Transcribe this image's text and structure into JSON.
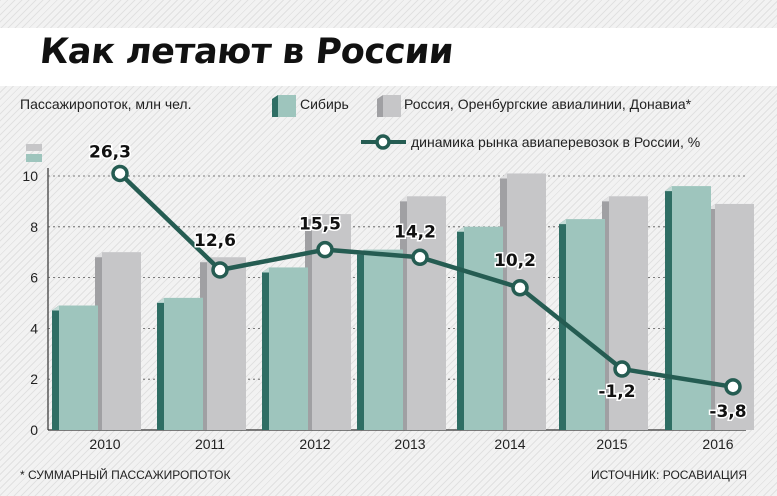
{
  "title": "Как летают в России",
  "colors": {
    "siberia_front": "#9ec5bd",
    "siberia_side": "#2f6e64",
    "siberia_top": "#c6ddd8",
    "others_front": "#c6c6c8",
    "others_side": "#a0a0a3",
    "others_top": "#e2e2e3",
    "line": "#255c52"
  },
  "footnote": "* СУММАРНЫЙ ПАССАЖИРОПОТОК",
  "source": "ИСТОЧНИК: РОСАВИАЦИЯ",
  "chart_data": {
    "type": "bar",
    "ylabel": "Пассажиропоток, млн чел.",
    "categories": [
      "2010",
      "2011",
      "2012",
      "2013",
      "2014",
      "2015",
      "2016"
    ],
    "ylim": [
      0,
      10
    ],
    "yticks": [
      "0",
      "2",
      "4",
      "6",
      "8",
      "10"
    ],
    "series": [
      {
        "name": "Сибирь",
        "values": [
          4.9,
          5.2,
          6.4,
          7.1,
          8.0,
          8.3,
          9.6
        ]
      },
      {
        "name": "Россия, Оренбургские авиалинии, Донавиа*",
        "values": [
          7.0,
          6.8,
          8.5,
          9.2,
          10.1,
          9.2,
          8.9
        ]
      }
    ],
    "line_series": {
      "name": "динамика рынка авиаперевозок в России, %",
      "values": [
        26.3,
        12.6,
        15.5,
        14.2,
        10.2,
        -1.2,
        -3.8
      ],
      "labels": [
        "26,3",
        "12,6",
        "15,5",
        "14,2",
        "10,2",
        "-1,2",
        "-3,8"
      ],
      "plot_y": [
        10.1,
        6.3,
        7.1,
        6.8,
        5.6,
        2.4,
        1.7
      ]
    },
    "grid": true,
    "legend": "top"
  }
}
